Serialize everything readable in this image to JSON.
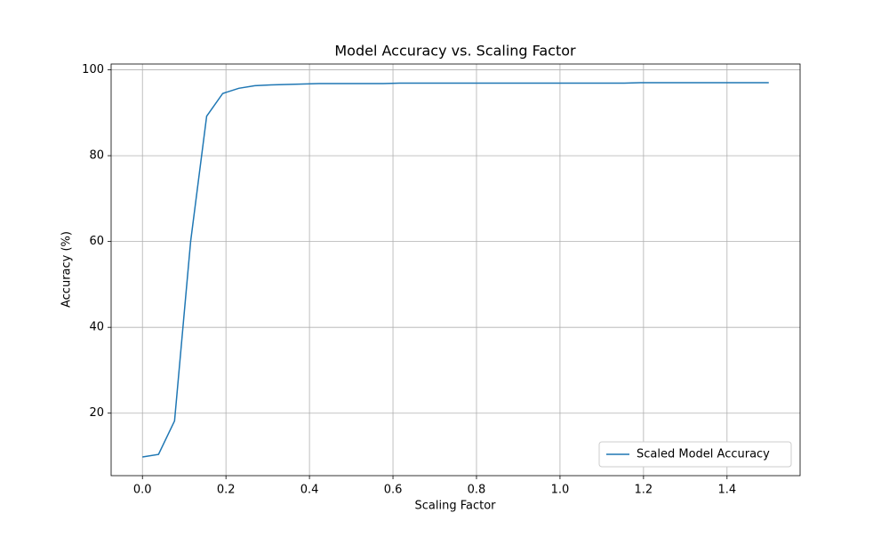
{
  "chart_data": {
    "type": "line",
    "title": "Model Accuracy vs. Scaling Factor",
    "x_label": "Scaling Factor",
    "y_label": "Accuracy (%)",
    "x": [
      0,
      0.0385,
      0.0769,
      0.1154,
      0.1538,
      0.1923,
      0.2308,
      0.2692,
      0.3077,
      0.3462,
      0.3846,
      0.4231,
      0.4615,
      0.5,
      0.5385,
      0.5769,
      0.6154,
      0.6538,
      0.6923,
      0.7308,
      0.7692,
      0.8077,
      0.8462,
      0.8846,
      0.9231,
      0.9615,
      1.0,
      1.0385,
      1.0769,
      1.1154,
      1.1538,
      1.1923,
      1.2308,
      1.2692,
      1.3077,
      1.3462,
      1.3846,
      1.4231,
      1.4615,
      1.5
    ],
    "series": [
      {
        "name": "Scaled Model Accuracy",
        "color": "#1f77b4",
        "values": [
          9.8,
          10.4,
          18.2,
          60,
          89.2,
          94.5,
          95.7,
          96.3,
          96.5,
          96.6,
          96.7,
          96.8,
          96.8,
          96.8,
          96.8,
          96.8,
          96.9,
          96.9,
          96.9,
          96.9,
          96.9,
          96.9,
          96.9,
          96.9,
          96.9,
          96.9,
          96.9,
          96.9,
          96.9,
          96.9,
          96.9,
          97,
          97,
          97,
          97,
          97,
          97,
          97,
          97,
          97
        ]
      }
    ],
    "xlim": [
      -0.075,
      1.575
    ],
    "xticks": [
      {
        "value": 0,
        "label": "0.0"
      },
      0.2,
      0.4,
      0.6,
      0.8,
      {
        "value": 1,
        "label": "1.0"
      },
      1.2,
      1.4
    ],
    "ylim": [
      5.44,
      101.36
    ],
    "yticks": [
      20,
      40,
      60,
      80,
      100
    ],
    "grid": true,
    "legend": "lower right"
  }
}
